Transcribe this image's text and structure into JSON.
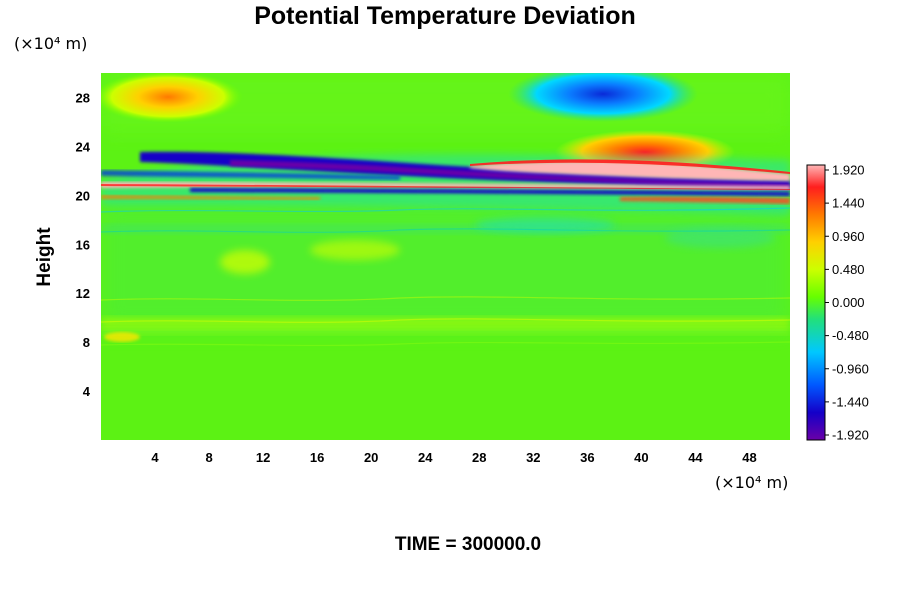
{
  "chart_data": {
    "type": "heatmap",
    "title": "Potential Temperature Deviation",
    "ylabel": "Height",
    "y_unit": "(×10⁴ m)",
    "x_unit": "(×10⁴ m)",
    "xlim": [
      0,
      51
    ],
    "ylim": [
      0,
      30
    ],
    "x_ticks": [
      4,
      8,
      12,
      16,
      20,
      24,
      28,
      32,
      36,
      40,
      44,
      48
    ],
    "y_ticks": [
      4,
      8,
      12,
      16,
      20,
      24,
      28
    ],
    "colorbar": {
      "min": -1.92,
      "max": 1.92,
      "tick_values": [
        1.92,
        1.44,
        0.96,
        0.48,
        0.0,
        -0.48,
        -0.96,
        -1.44,
        -1.92
      ],
      "tick_labels": [
        "1.920",
        "1.440",
        "0.960",
        "0.480",
        "0.000",
        "-0.480",
        "-0.960",
        "-1.440",
        "-1.920"
      ],
      "colors": [
        "#6a00a8",
        "#1400c8",
        "#0058ff",
        "#00c8ff",
        "#22e07a",
        "#66ff00",
        "#ccff00",
        "#ffd000",
        "#ff7a00",
        "#ff1e1e",
        "#ffb6b6"
      ]
    },
    "features": [
      {
        "kind": "positive_anomaly",
        "x": 5,
        "y": 28,
        "value": 1.0
      },
      {
        "kind": "negative_anomaly",
        "x": 39,
        "y": 28.2,
        "value": -1.5
      },
      {
        "kind": "positive_anomaly",
        "x": 40,
        "y": 23.2,
        "value": 1.3
      },
      {
        "kind": "negative_band",
        "x_start": 3,
        "x_end": 51,
        "y_start": 23.0,
        "y_end": 20.6,
        "value": -1.92
      },
      {
        "kind": "positive_band",
        "x_start": 0,
        "x_end": 51,
        "y_start": 20.6,
        "y_end": 20.9,
        "value": 1.92
      },
      {
        "kind": "positive_band",
        "x_start": 28,
        "x_end": 51,
        "y_start": 22.5,
        "y_end": 21.3,
        "value": 1.92
      },
      {
        "kind": "negative_band",
        "x_start": 12,
        "x_end": 51,
        "y_start": 20.4,
        "y_end": 20.0,
        "value": -1.92
      },
      {
        "kind": "weak_positive",
        "x": 11,
        "y": 14.5,
        "value": 0.4
      },
      {
        "kind": "weak_positive",
        "x": 20,
        "y": 16,
        "value": 0.4
      },
      {
        "kind": "weak_positive",
        "x": 2,
        "y": 8.3,
        "value": 0.5
      },
      {
        "kind": "weak_negative",
        "x": 33,
        "y": 15.5,
        "value": -0.4
      }
    ]
  },
  "footer": {
    "time_label": "TIME = 300000.0"
  }
}
